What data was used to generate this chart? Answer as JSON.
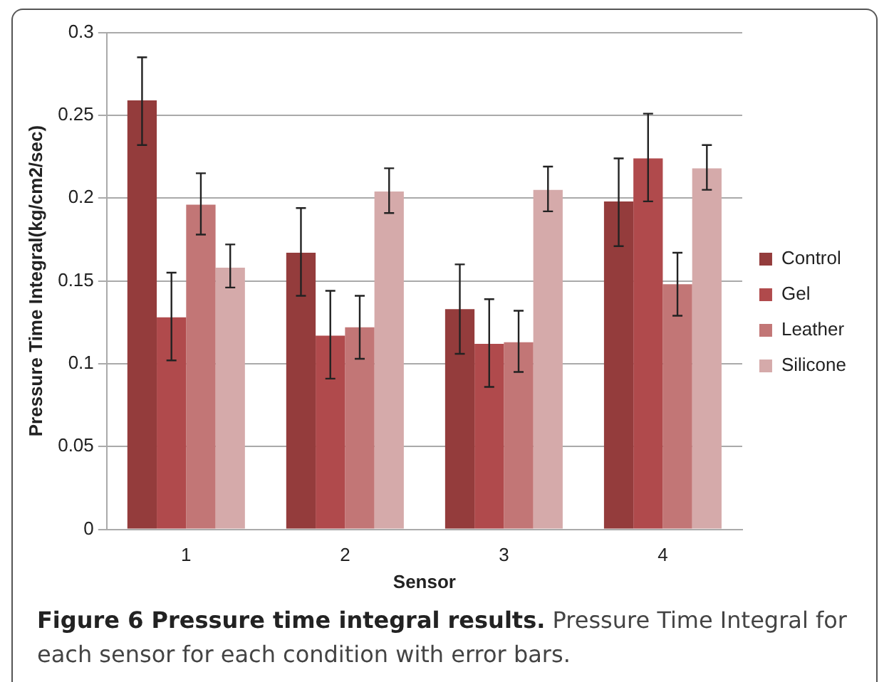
{
  "chart_data": {
    "type": "bar",
    "title": "Figure 6 Pressure time integral results.",
    "annotations": [
      "Pressure Time Integral for each sensor for each condition with error bars."
    ],
    "xlabel": "Sensor",
    "ylabel": "Pressure Time Integral(kg/cm2/sec)",
    "categories": [
      "1",
      "2",
      "3",
      "4"
    ],
    "series": [
      {
        "name": "Control",
        "color": "#943c3c",
        "values": [
          0.259,
          0.167,
          0.133,
          0.198
        ],
        "errors": [
          [
            0.232,
            0.285
          ],
          [
            0.141,
            0.194
          ],
          [
            0.106,
            0.16
          ],
          [
            0.171,
            0.224
          ]
        ]
      },
      {
        "name": "Gel",
        "color": "#b04a4c",
        "values": [
          0.128,
          0.117,
          0.112,
          0.224
        ],
        "errors": [
          [
            0.102,
            0.155
          ],
          [
            0.091,
            0.144
          ],
          [
            0.086,
            0.139
          ],
          [
            0.198,
            0.251
          ]
        ]
      },
      {
        "name": "Leather",
        "color": "#c27676",
        "values": [
          0.196,
          0.122,
          0.113,
          0.148
        ],
        "errors": [
          [
            0.178,
            0.215
          ],
          [
            0.103,
            0.141
          ],
          [
            0.095,
            0.132
          ],
          [
            0.129,
            0.167
          ]
        ]
      },
      {
        "name": "Silicone",
        "color": "#d5aaaa",
        "values": [
          0.158,
          0.204,
          0.205,
          0.218
        ],
        "errors": [
          [
            0.146,
            0.172
          ],
          [
            0.191,
            0.218
          ],
          [
            0.192,
            0.219
          ],
          [
            0.205,
            0.232
          ]
        ]
      }
    ],
    "ylim": [
      0,
      0.3
    ],
    "yticks": [
      0,
      0.05,
      0.1,
      0.15,
      0.2,
      0.25,
      0.3
    ],
    "grid": "y",
    "legend": "right"
  }
}
